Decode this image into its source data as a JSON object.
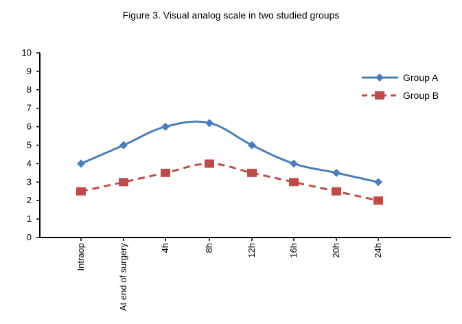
{
  "chart_data": {
    "type": "line",
    "title": "Figure 3. Visual analog scale in two studied groups",
    "xlabel": "",
    "ylabel": "",
    "categories": [
      "Intraop",
      "At end of surgery",
      "4h",
      "8h",
      "12h",
      "16h",
      "20h",
      "24h"
    ],
    "ylim": [
      0,
      10
    ],
    "yticks": [
      0,
      1,
      2,
      3,
      4,
      5,
      6,
      7,
      8,
      9,
      10
    ],
    "grid": false,
    "legend_position": "top-right",
    "series": [
      {
        "name": "Group A",
        "values": [
          4,
          5,
          6,
          6.2,
          5,
          4,
          3.5,
          3
        ],
        "color": "#4a7ebb",
        "line": "solid",
        "marker": "diamond"
      },
      {
        "name": "Group B",
        "values": [
          2.5,
          3,
          3.5,
          4,
          3.5,
          3,
          2.5,
          2
        ],
        "color": "#be4b48",
        "line": "dashed",
        "marker": "square"
      }
    ]
  }
}
